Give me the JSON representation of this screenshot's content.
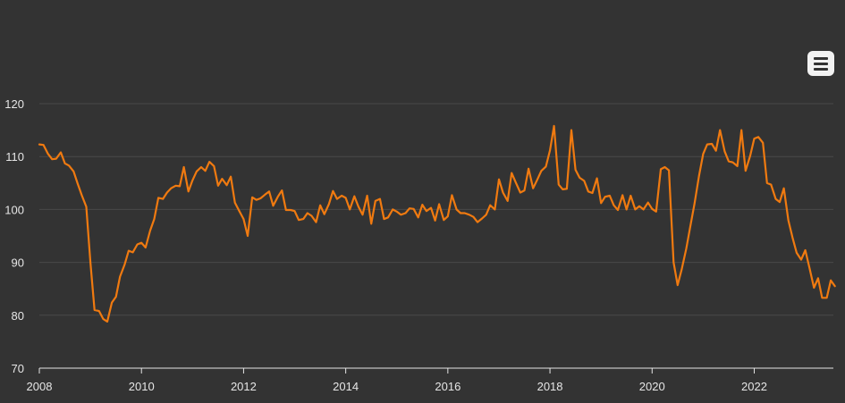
{
  "menu": {
    "icon": "hamburger-menu-icon"
  },
  "colors": {
    "background": "#333333",
    "line": "#f07a10",
    "grid": "#4a4a4a",
    "axis": "#e6e6e6"
  },
  "chart_data": {
    "type": "line",
    "title": "",
    "xlabel": "",
    "ylabel": "",
    "xlim": [
      2008,
      2023.55
    ],
    "ylim": [
      70,
      120
    ],
    "grid": true,
    "y_ticks": [
      70,
      80,
      90,
      100,
      110,
      120
    ],
    "x_ticks": [
      2008,
      2010,
      2012,
      2014,
      2016,
      2018,
      2020,
      2022
    ],
    "x_tick_labels": [
      "2008",
      "2010",
      "2012",
      "2014",
      "2016",
      "2018",
      "2020",
      "2022"
    ],
    "y_tick_labels": [
      "70",
      "80",
      "90",
      "100",
      "110",
      "120"
    ],
    "series": [
      {
        "color": "#f07a10",
        "points": [
          [
            2008.0,
            112.3
          ],
          [
            2008.08,
            112.2
          ],
          [
            2008.17,
            110.5
          ],
          [
            2008.25,
            109.5
          ],
          [
            2008.33,
            109.6
          ],
          [
            2008.42,
            110.8
          ],
          [
            2008.5,
            108.7
          ],
          [
            2008.58,
            108.3
          ],
          [
            2008.67,
            107.2
          ],
          [
            2008.75,
            104.9
          ],
          [
            2008.83,
            102.7
          ],
          [
            2008.92,
            100.5
          ],
          [
            2009.0,
            90.0
          ],
          [
            2009.08,
            81.0
          ],
          [
            2009.17,
            80.8
          ],
          [
            2009.25,
            79.3
          ],
          [
            2009.33,
            78.8
          ],
          [
            2009.42,
            82.4
          ],
          [
            2009.5,
            83.5
          ],
          [
            2009.58,
            87.3
          ],
          [
            2009.67,
            89.6
          ],
          [
            2009.75,
            92.2
          ],
          [
            2009.83,
            91.9
          ],
          [
            2009.92,
            93.4
          ],
          [
            2010.0,
            93.7
          ],
          [
            2010.08,
            92.8
          ],
          [
            2010.17,
            96.0
          ],
          [
            2010.25,
            98.2
          ],
          [
            2010.33,
            102.2
          ],
          [
            2010.42,
            102.0
          ],
          [
            2010.5,
            103.2
          ],
          [
            2010.58,
            104.0
          ],
          [
            2010.67,
            104.5
          ],
          [
            2010.75,
            104.4
          ],
          [
            2010.83,
            108.0
          ],
          [
            2010.92,
            103.4
          ],
          [
            2011.0,
            105.5
          ],
          [
            2011.08,
            107.2
          ],
          [
            2011.17,
            108.0
          ],
          [
            2011.25,
            107.3
          ],
          [
            2011.33,
            109.0
          ],
          [
            2011.42,
            108.2
          ],
          [
            2011.5,
            104.5
          ],
          [
            2011.58,
            105.8
          ],
          [
            2011.67,
            104.6
          ],
          [
            2011.75,
            106.2
          ],
          [
            2011.83,
            101.3
          ],
          [
            2011.92,
            99.6
          ],
          [
            2012.0,
            98.2
          ],
          [
            2012.08,
            95.0
          ],
          [
            2012.17,
            102.3
          ],
          [
            2012.25,
            101.8
          ],
          [
            2012.33,
            102.1
          ],
          [
            2012.42,
            102.8
          ],
          [
            2012.5,
            103.4
          ],
          [
            2012.58,
            100.7
          ],
          [
            2012.67,
            102.4
          ],
          [
            2012.75,
            103.6
          ],
          [
            2012.83,
            99.9
          ],
          [
            2012.92,
            99.9
          ],
          [
            2013.0,
            99.7
          ],
          [
            2013.08,
            98.0
          ],
          [
            2013.17,
            98.2
          ],
          [
            2013.25,
            99.3
          ],
          [
            2013.33,
            98.8
          ],
          [
            2013.42,
            97.6
          ],
          [
            2013.5,
            100.8
          ],
          [
            2013.58,
            99.1
          ],
          [
            2013.67,
            101.0
          ],
          [
            2013.75,
            103.5
          ],
          [
            2013.83,
            102.0
          ],
          [
            2013.92,
            102.6
          ],
          [
            2014.0,
            102.2
          ],
          [
            2014.08,
            100.0
          ],
          [
            2014.17,
            102.5
          ],
          [
            2014.25,
            100.5
          ],
          [
            2014.33,
            99.0
          ],
          [
            2014.42,
            102.6
          ],
          [
            2014.5,
            97.3
          ],
          [
            2014.58,
            101.6
          ],
          [
            2014.67,
            102.0
          ],
          [
            2014.75,
            98.2
          ],
          [
            2014.83,
            98.5
          ],
          [
            2014.92,
            100.0
          ],
          [
            2015.0,
            99.6
          ],
          [
            2015.08,
            99.0
          ],
          [
            2015.17,
            99.3
          ],
          [
            2015.25,
            100.2
          ],
          [
            2015.33,
            100.1
          ],
          [
            2015.42,
            98.5
          ],
          [
            2015.5,
            100.9
          ],
          [
            2015.58,
            99.7
          ],
          [
            2015.67,
            100.3
          ],
          [
            2015.75,
            97.9
          ],
          [
            2015.83,
            101.0
          ],
          [
            2015.92,
            98.0
          ],
          [
            2016.0,
            98.7
          ],
          [
            2016.08,
            102.7
          ],
          [
            2016.17,
            100.0
          ],
          [
            2016.25,
            99.3
          ],
          [
            2016.33,
            99.3
          ],
          [
            2016.42,
            99.0
          ],
          [
            2016.5,
            98.6
          ],
          [
            2016.58,
            97.6
          ],
          [
            2016.67,
            98.3
          ],
          [
            2016.75,
            99.0
          ],
          [
            2016.83,
            100.8
          ],
          [
            2016.92,
            100.0
          ],
          [
            2017.0,
            105.7
          ],
          [
            2017.08,
            103.2
          ],
          [
            2017.17,
            101.6
          ],
          [
            2017.25,
            106.9
          ],
          [
            2017.33,
            105.1
          ],
          [
            2017.42,
            103.2
          ],
          [
            2017.5,
            103.6
          ],
          [
            2017.58,
            107.7
          ],
          [
            2017.67,
            104.0
          ],
          [
            2017.75,
            105.6
          ],
          [
            2017.83,
            107.3
          ],
          [
            2017.92,
            108.1
          ],
          [
            2018.0,
            111.2
          ],
          [
            2018.08,
            115.8
          ],
          [
            2018.17,
            104.7
          ],
          [
            2018.25,
            103.8
          ],
          [
            2018.33,
            103.9
          ],
          [
            2018.42,
            115.0
          ],
          [
            2018.5,
            107.5
          ],
          [
            2018.58,
            106.0
          ],
          [
            2018.67,
            105.4
          ],
          [
            2018.75,
            103.4
          ],
          [
            2018.83,
            103.1
          ],
          [
            2018.92,
            105.9
          ],
          [
            2019.0,
            101.2
          ],
          [
            2019.08,
            102.4
          ],
          [
            2019.17,
            102.6
          ],
          [
            2019.25,
            100.8
          ],
          [
            2019.33,
            99.9
          ],
          [
            2019.42,
            102.7
          ],
          [
            2019.5,
            100.0
          ],
          [
            2019.58,
            102.6
          ],
          [
            2019.67,
            100.0
          ],
          [
            2019.75,
            100.6
          ],
          [
            2019.83,
            100.0
          ],
          [
            2019.92,
            101.3
          ],
          [
            2020.0,
            100.1
          ],
          [
            2020.08,
            99.6
          ],
          [
            2020.17,
            107.6
          ],
          [
            2020.25,
            108.0
          ],
          [
            2020.33,
            107.4
          ],
          [
            2020.42,
            90.0
          ],
          [
            2020.5,
            85.7
          ],
          [
            2020.58,
            88.7
          ],
          [
            2020.67,
            92.6
          ],
          [
            2020.75,
            96.9
          ],
          [
            2020.83,
            101.1
          ],
          [
            2020.92,
            106.4
          ],
          [
            2021.0,
            110.5
          ],
          [
            2021.08,
            112.3
          ],
          [
            2021.17,
            112.4
          ],
          [
            2021.25,
            111.1
          ],
          [
            2021.33,
            115.0
          ],
          [
            2021.42,
            111.0
          ],
          [
            2021.5,
            109.1
          ],
          [
            2021.58,
            108.9
          ],
          [
            2021.67,
            108.2
          ],
          [
            2021.75,
            115.0
          ],
          [
            2021.83,
            107.3
          ],
          [
            2021.92,
            110.1
          ],
          [
            2022.0,
            113.4
          ],
          [
            2022.08,
            113.7
          ],
          [
            2022.17,
            112.6
          ],
          [
            2022.25,
            105.0
          ],
          [
            2022.33,
            104.7
          ],
          [
            2022.42,
            102.0
          ],
          [
            2022.5,
            101.4
          ],
          [
            2022.58,
            104.0
          ],
          [
            2022.67,
            97.9
          ],
          [
            2022.75,
            94.7
          ],
          [
            2022.83,
            91.8
          ],
          [
            2022.92,
            90.5
          ],
          [
            2023.0,
            92.3
          ],
          [
            2023.08,
            89.0
          ],
          [
            2023.17,
            85.2
          ],
          [
            2023.25,
            87.0
          ],
          [
            2023.33,
            83.3
          ],
          [
            2023.42,
            83.3
          ],
          [
            2023.5,
            86.6
          ],
          [
            2023.58,
            85.5
          ]
        ]
      }
    ]
  }
}
